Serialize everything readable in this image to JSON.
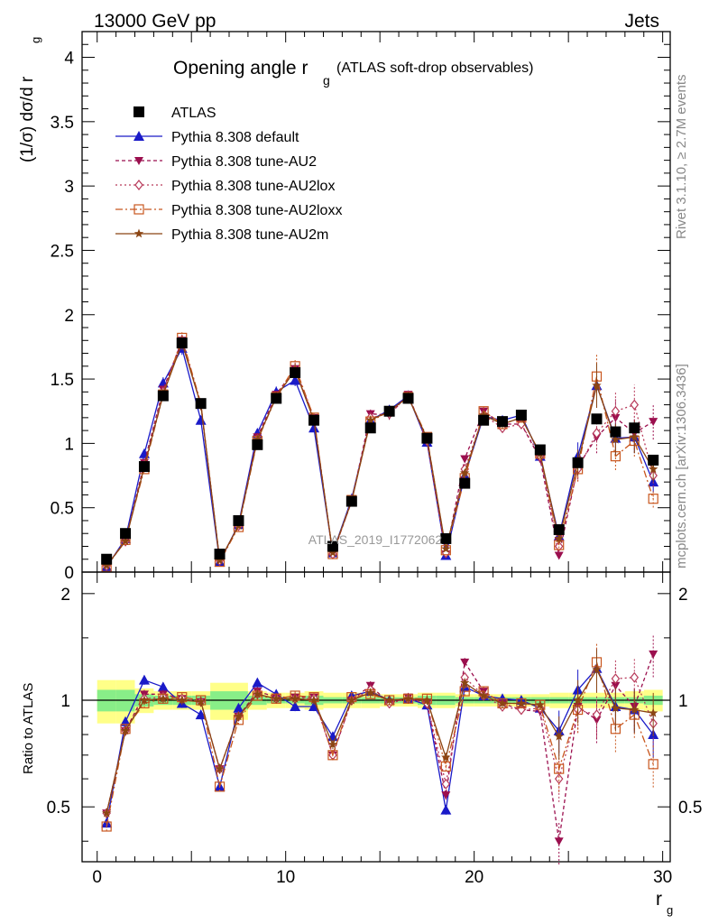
{
  "header": {
    "energy_label": "13000 GeV pp",
    "category_label": "Jets"
  },
  "side_labels": {
    "rivet": "Rivet 3.1.10, ≥ 2.7M events",
    "mcplots": "mcplots.cern.ch [arXiv:1306.3436]"
  },
  "watermark": "ATLAS_2019_I1772062",
  "chart_data": [
    {
      "type": "line",
      "title_main": "Opening angle r",
      "title_sub": "g",
      "title_rest": "(ATLAS soft-drop observables)",
      "ylabel": "(1/σ) dσ/d r",
      "ylabel_sub": "g",
      "ylim": [
        0,
        4.2
      ],
      "yticks": [
        "0",
        "0.5",
        "1",
        "1.5",
        "2",
        "2.5",
        "3",
        "3.5",
        "4"
      ],
      "yticks_values": [
        0,
        0.5,
        1,
        1.5,
        2,
        2.5,
        3,
        3.5,
        4
      ],
      "x": [
        0.5,
        1.5,
        2.5,
        3.5,
        4.5,
        5.5,
        6.5,
        7.5,
        8.5,
        9.5,
        10.5,
        11.5,
        12.5,
        13.5,
        14.5,
        15.5,
        16.5,
        17.5,
        18.5,
        19.5,
        20.5,
        21.5,
        22.5,
        23.5,
        24.5,
        25.5,
        26.5,
        27.5,
        28.5,
        29.5
      ],
      "xlim": [
        -0.8,
        30.4
      ],
      "series": [
        {
          "name": "ATLAS",
          "color": "#000000",
          "marker": "square",
          "dash": "",
          "values": [
            0.1,
            0.3,
            0.82,
            1.37,
            1.78,
            1.31,
            0.14,
            0.4,
            0.99,
            1.35,
            1.55,
            1.18,
            0.2,
            0.55,
            1.12,
            1.25,
            1.35,
            1.04,
            0.26,
            0.69,
            1.18,
            1.17,
            1.22,
            0.95,
            0.33,
            0.85,
            1.19,
            1.09,
            1.12,
            0.87
          ]
        },
        {
          "name": "Pythia 8.308 default",
          "color": "#1a1ac8",
          "marker": "triangle-up",
          "dash": "",
          "values": [
            0.04,
            0.26,
            0.92,
            1.47,
            1.74,
            1.18,
            0.08,
            0.37,
            1.08,
            1.4,
            1.49,
            1.12,
            0.15,
            0.57,
            1.18,
            1.26,
            1.37,
            1.01,
            0.13,
            0.75,
            1.21,
            1.18,
            1.22,
            0.9,
            0.28,
            0.9,
            1.45,
            1.04,
            1.05,
            0.7
          ]
        },
        {
          "name": "Pythia 8.308 tune-AU2",
          "color": "#9b0f4e",
          "marker": "triangle-down",
          "dash": "4,3",
          "values": [
            0.05,
            0.24,
            0.85,
            1.42,
            1.8,
            1.3,
            0.09,
            0.36,
            1.05,
            1.38,
            1.58,
            1.2,
            0.14,
            0.55,
            1.23,
            1.22,
            1.38,
            1.02,
            0.14,
            0.88,
            1.25,
            1.15,
            1.15,
            0.88,
            0.13,
            0.82,
            1.05,
            1.2,
            1.08,
            1.17
          ]
        },
        {
          "name": "Pythia 8.308 tune-AU2lox",
          "color": "#b83a5a",
          "marker": "diamond",
          "dash": "2,3",
          "values": [
            0.05,
            0.24,
            0.83,
            1.4,
            1.8,
            1.3,
            0.09,
            0.36,
            1.03,
            1.36,
            1.57,
            1.19,
            0.14,
            0.55,
            1.2,
            1.23,
            1.37,
            1.02,
            0.15,
            0.8,
            1.22,
            1.12,
            1.15,
            0.9,
            0.2,
            0.8,
            1.08,
            1.25,
            1.3,
            0.75
          ]
        },
        {
          "name": "Pythia 8.308 tune-AU2loxx",
          "color": "#c8561e",
          "marker": "square-open",
          "dash": "8,3,2,3",
          "values": [
            0.04,
            0.25,
            0.8,
            1.38,
            1.82,
            1.31,
            0.08,
            0.35,
            1.02,
            1.36,
            1.6,
            1.2,
            0.14,
            0.56,
            1.17,
            1.25,
            1.36,
            1.05,
            0.17,
            0.73,
            1.25,
            1.15,
            1.2,
            0.92,
            0.21,
            0.8,
            1.52,
            0.9,
            1.02,
            0.57
          ]
        },
        {
          "name": "Pythia 8.308 tune-AU2m",
          "color": "#8b4513",
          "marker": "star",
          "dash": "",
          "values": [
            0.05,
            0.24,
            0.82,
            1.38,
            1.78,
            1.3,
            0.09,
            0.36,
            1.03,
            1.36,
            1.57,
            1.18,
            0.15,
            0.55,
            1.18,
            1.25,
            1.36,
            1.04,
            0.18,
            0.77,
            1.22,
            1.15,
            1.2,
            0.92,
            0.26,
            0.85,
            1.45,
            1.03,
            1.05,
            0.8
          ]
        }
      ]
    },
    {
      "type": "line",
      "ylabel": "Ratio to ATLAS",
      "xlabel": "r",
      "xlabel_sub": "g",
      "ylim": [
        0.35,
        2.3
      ],
      "yscale": "log",
      "yticks": [
        "0.5",
        "1",
        "2"
      ],
      "yticks_values": [
        0.5,
        1,
        2
      ],
      "xticks": [
        "0",
        "10",
        "20",
        "30"
      ],
      "xticks_values": [
        0,
        10,
        20,
        30
      ],
      "band_green": [
        0.07,
        0.07,
        0.04,
        0.03,
        0.03,
        0.03,
        0.06,
        0.06,
        0.03,
        0.02,
        0.02,
        0.03,
        0.02,
        0.02,
        0.02,
        0.02,
        0.02,
        0.03,
        0.03,
        0.02,
        0.02,
        0.02,
        0.02,
        0.02,
        0.02,
        0.02,
        0.02,
        0.02,
        0.02,
        0.03
      ],
      "band_yellow": [
        0.14,
        0.14,
        0.08,
        0.06,
        0.06,
        0.06,
        0.12,
        0.12,
        0.06,
        0.05,
        0.05,
        0.06,
        0.05,
        0.05,
        0.05,
        0.04,
        0.04,
        0.05,
        0.05,
        0.04,
        0.04,
        0.04,
        0.04,
        0.04,
        0.05,
        0.05,
        0.05,
        0.05,
        0.06,
        0.07
      ],
      "series": [
        {
          "name": "Pythia 8.308 default",
          "values": [
            0.45,
            0.87,
            1.14,
            1.09,
            0.98,
            0.91,
            0.57,
            0.95,
            1.12,
            1.04,
            0.96,
            0.96,
            0.79,
            1.03,
            1.06,
            1.0,
            1.01,
            0.97,
            0.49,
            1.09,
            1.03,
            1.01,
            1.0,
            0.95,
            0.82,
            1.07,
            1.23,
            0.96,
            0.94,
            0.8
          ]
        },
        {
          "name": "Pythia 8.308 tune-AU2",
          "values": [
            0.48,
            0.82,
            1.04,
            1.04,
            1.01,
            0.99,
            0.64,
            0.9,
            1.06,
            1.02,
            1.02,
            1.02,
            0.7,
            1.0,
            1.1,
            0.98,
            1.02,
            0.98,
            0.54,
            1.28,
            1.06,
            0.98,
            0.94,
            0.93,
            0.4,
            0.96,
            0.88,
            1.1,
            0.96,
            1.35
          ]
        },
        {
          "name": "Pythia 8.308 tune-AU2lox",
          "values": [
            0.48,
            0.82,
            1.01,
            1.02,
            1.01,
            0.99,
            0.64,
            0.9,
            1.04,
            1.01,
            1.01,
            1.01,
            0.7,
            1.0,
            1.07,
            0.98,
            1.01,
            0.98,
            0.58,
            1.16,
            1.03,
            0.96,
            0.94,
            0.95,
            0.6,
            0.94,
            0.91,
            1.15,
            1.16,
            0.86
          ]
        },
        {
          "name": "Pythia 8.308 tune-AU2loxx",
          "values": [
            0.44,
            0.83,
            0.98,
            1.01,
            1.02,
            1.0,
            0.57,
            0.88,
            1.03,
            1.01,
            1.03,
            1.02,
            0.7,
            1.02,
            1.04,
            1.0,
            1.01,
            1.01,
            0.65,
            1.06,
            1.06,
            0.98,
            0.98,
            0.97,
            0.64,
            0.94,
            1.28,
            0.83,
            0.91,
            0.66
          ]
        },
        {
          "name": "Pythia 8.308 tune-AU2m",
          "values": [
            0.48,
            0.82,
            1.0,
            1.01,
            1.0,
            0.99,
            0.64,
            0.9,
            1.04,
            1.01,
            1.01,
            1.0,
            0.75,
            1.0,
            1.05,
            1.0,
            1.01,
            1.0,
            0.69,
            1.12,
            1.03,
            0.98,
            0.98,
            0.97,
            0.79,
            1.0,
            1.22,
            0.95,
            0.94,
            0.92
          ]
        }
      ]
    }
  ]
}
